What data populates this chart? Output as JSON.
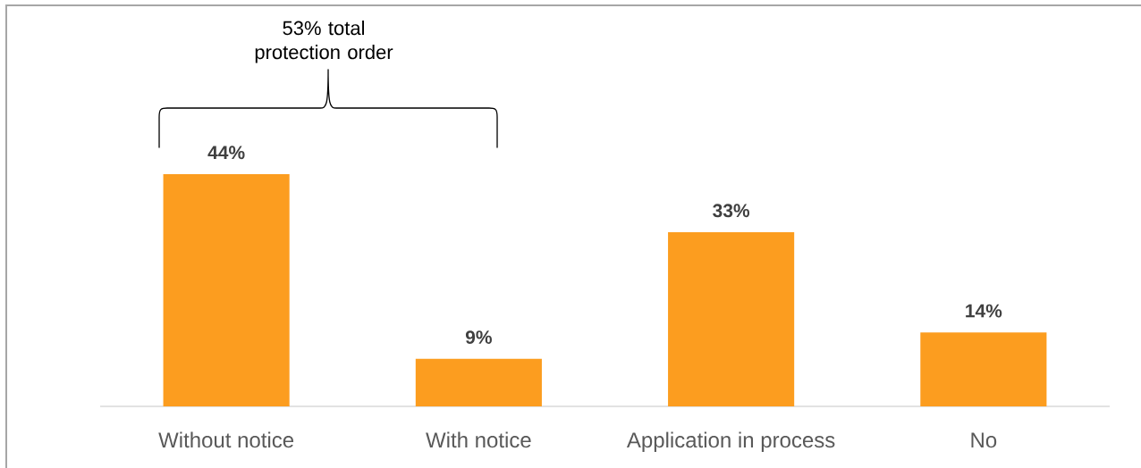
{
  "chart_data": {
    "type": "bar",
    "categories": [
      "Without notice",
      "With notice",
      "Application in process",
      "No"
    ],
    "values": [
      44,
      9,
      33,
      14
    ],
    "value_labels": [
      "44%",
      "9%",
      "33%",
      "14%"
    ],
    "color": "#fc9d1f",
    "annotations": [
      "53% total protection order"
    ]
  }
}
